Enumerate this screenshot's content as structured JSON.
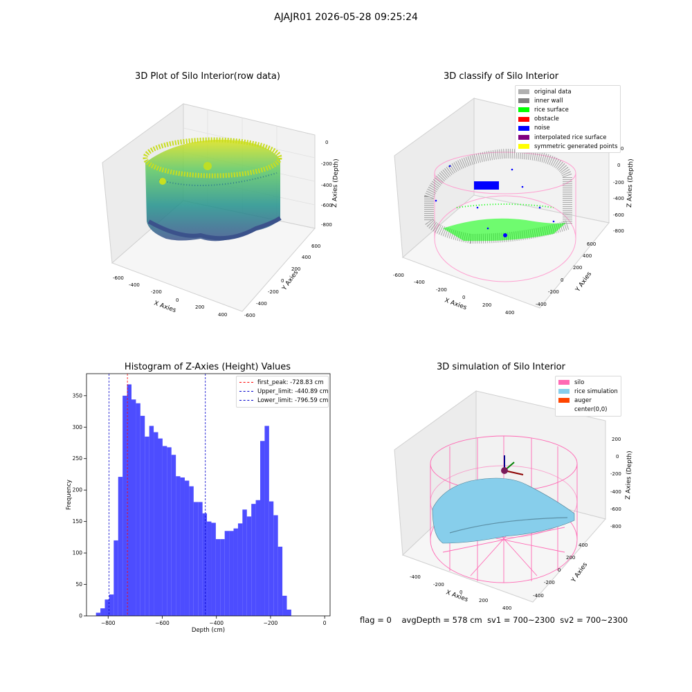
{
  "suptitle": "AJAJR01 2026-05-28 09:25:24",
  "panels": {
    "raw": {
      "title": "3D Plot of Silo Interior(row data)",
      "xlabel": "X Axies",
      "ylabel": "Y Axies",
      "zlabel": "Z Axies (Depth)",
      "xticks": [
        "-600",
        "-400",
        "-200",
        "0",
        "200",
        "400"
      ],
      "yticks": [
        "600",
        "400",
        "200",
        "0",
        "-200",
        "-400",
        "-600"
      ],
      "zticks": [
        "0",
        "-200",
        "-400",
        "-600",
        "-800"
      ]
    },
    "classify": {
      "title": "3D classify of Silo Interior",
      "xlabel": "X Axies",
      "ylabel": "Y Axies",
      "zlabel": "Z Axies (Depth)",
      "xticks": [
        "-600",
        "-400",
        "-200",
        "0",
        "200",
        "400"
      ],
      "yticks": [
        "600",
        "400",
        "200",
        "0",
        "-200",
        "-400"
      ],
      "zticks": [
        "200",
        "0",
        "-200",
        "-400",
        "-600",
        "-800"
      ],
      "legend": [
        {
          "label": "original data",
          "color": "#b0b0b0"
        },
        {
          "label": "inner wall",
          "color": "#808080"
        },
        {
          "label": "rice surface",
          "color": "#00ff00"
        },
        {
          "label": "obstacle",
          "color": "#ff0000"
        },
        {
          "label": "noise",
          "color": "#0000ff"
        },
        {
          "label": "interpolated rice surface",
          "color": "#800080"
        },
        {
          "label": "symmetric generated points",
          "color": "#ffff00"
        }
      ]
    },
    "simulation": {
      "title": "3D simulation of Silo Interior",
      "xlabel": "X Axies",
      "ylabel": "Y Axies",
      "zlabel": "Z Axies (Depth)",
      "xticks": [
        "-400",
        "-200",
        "0",
        "200",
        "400"
      ],
      "yticks": [
        "400",
        "200",
        "0",
        "-200",
        "-400"
      ],
      "zticks": [
        "200",
        "0",
        "-200",
        "-400",
        "-600",
        "-800"
      ],
      "legend": [
        {
          "label": "silo",
          "color": "#ff69b4"
        },
        {
          "label": "rice simulation",
          "color": "#87ceeb"
        },
        {
          "label": "auger",
          "color": "#ff4500"
        },
        {
          "label": "center(0,0)",
          "color": ""
        }
      ]
    }
  },
  "chart_data": {
    "type": "bar",
    "title": "Histogram of Z-Axies (Height) Values",
    "xlabel": "Depth (cm)",
    "ylabel": "Frequency",
    "xlim": [
      -880,
      20
    ],
    "ylim": [
      0,
      385
    ],
    "xticks": [
      -800,
      -600,
      -400,
      -200,
      0
    ],
    "yticks": [
      0,
      50,
      100,
      150,
      200,
      250,
      300,
      350
    ],
    "bin_start": -845,
    "bin_width": 16.4,
    "values": [
      5,
      12,
      26,
      34,
      120,
      221,
      350,
      368,
      344,
      338,
      318,
      285,
      302,
      292,
      282,
      270,
      268,
      256,
      222,
      220,
      215,
      206,
      181,
      181,
      163,
      150,
      148,
      122,
      122,
      135,
      135,
      139,
      147,
      169,
      158,
      178,
      184,
      278,
      302,
      182,
      160,
      110,
      32,
      10
    ],
    "bar_color": "#4d4dff",
    "vlines": [
      {
        "label": "first_peak: -728.83 cm",
        "x": -728.83,
        "color": "#ff0000"
      },
      {
        "label": "Upper_limit: -440.89 cm",
        "x": -440.89,
        "color": "#0000cc"
      },
      {
        "label": "Lower_limit: -796.59 cm",
        "x": -796.59,
        "color": "#0000cc"
      }
    ],
    "legend_position": "top-right"
  },
  "status": {
    "flag": "flag = 0",
    "avg": "avgDepth = 578 cm",
    "sv1": "sv1 = 700~2300",
    "sv2": "sv2 = 700~2300"
  }
}
